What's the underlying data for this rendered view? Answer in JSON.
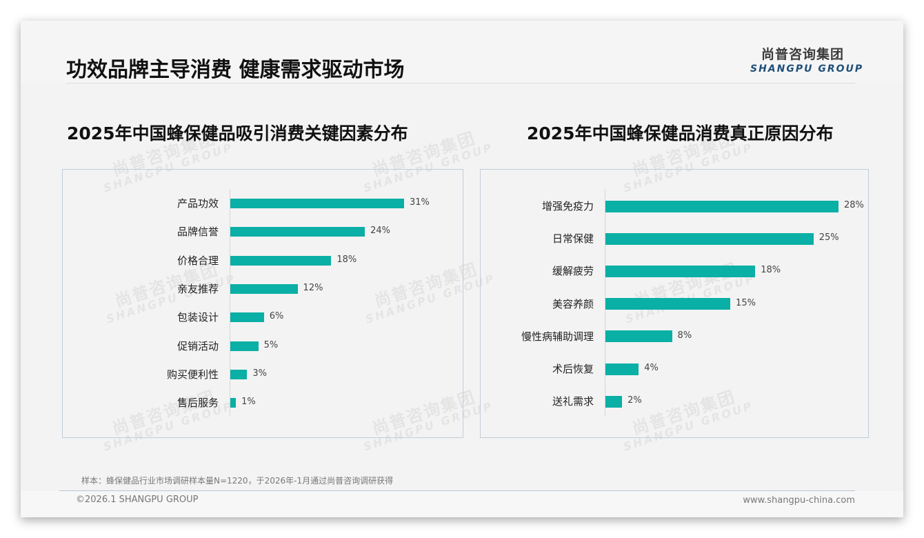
{
  "page": {
    "title": "功效品牌主导消费 健康需求驱动市场",
    "logo": {
      "cn": "尚普咨询集团",
      "en": "SHANGPU GROUP"
    },
    "watermark": {
      "cn": "尚普咨询集团",
      "en": "SHANGPU GROUP"
    },
    "footnote": "样本：蜂保健品行业市场调研样本量N=1220，于2026年-1月通过尚普咨询调研获得",
    "copyright": "©2026.1 SHANGPU GROUP",
    "website": "www.shangpu-china.com",
    "colors": {
      "bar": "#0aafa5",
      "logo_en": "#1e4f78",
      "box_border": "#c2ccd6"
    }
  },
  "chart_data": [
    {
      "type": "bar",
      "orientation": "horizontal",
      "title": "2025年中国蜂保健品吸引消费关键因素分布",
      "categories": [
        "产品功效",
        "品牌信誉",
        "价格合理",
        "亲友推荐",
        "包装设计",
        "促销活动",
        "购买便利性",
        "售后服务"
      ],
      "values": [
        31,
        24,
        18,
        12,
        6,
        5,
        3,
        1
      ],
      "labels": [
        "31%",
        "24%",
        "18%",
        "12%",
        "6%",
        "5%",
        "3%",
        "1%"
      ],
      "unit": "%",
      "xlabel": "",
      "ylabel": "",
      "grid": false,
      "legend": "none"
    },
    {
      "type": "bar",
      "orientation": "horizontal",
      "title": "2025年中国蜂保健品消费真正原因分布",
      "categories": [
        "增强免疫力",
        "日常保健",
        "缓解疲劳",
        "美容养颜",
        "慢性病辅助调理",
        "术后恢复",
        "送礼需求"
      ],
      "values": [
        28,
        25,
        18,
        15,
        8,
        4,
        2
      ],
      "labels": [
        "28%",
        "25%",
        "18%",
        "15%",
        "8%",
        "4%",
        "2%"
      ],
      "unit": "%",
      "xlabel": "",
      "ylabel": "",
      "grid": false,
      "legend": "none"
    }
  ]
}
